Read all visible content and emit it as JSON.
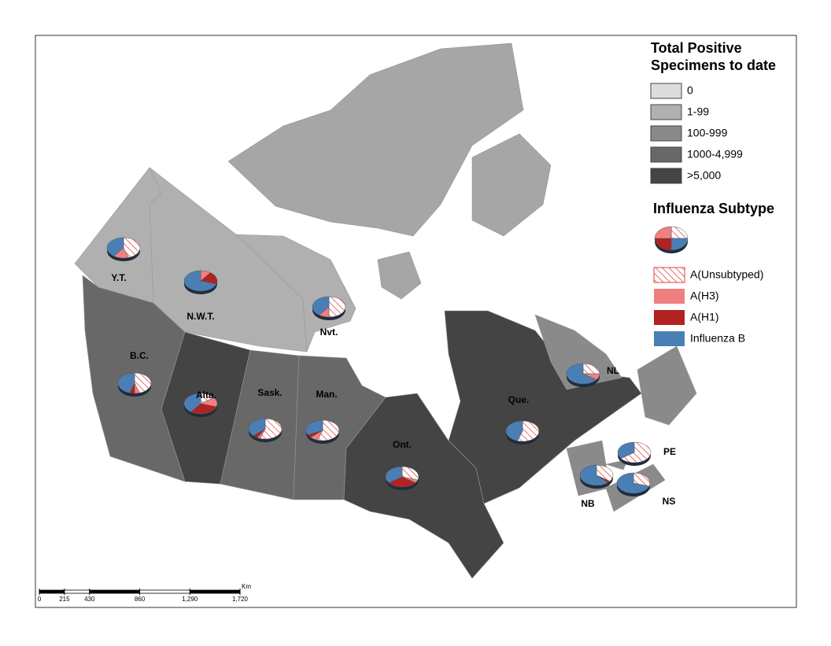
{
  "legend": {
    "title": [
      "Total Positive",
      "Specimens to date"
    ],
    "classes": [
      {
        "label": "0",
        "color": "#dcdcdc"
      },
      {
        "label": "1-99",
        "color": "#b0b0b0"
      },
      {
        "label": "100-999",
        "color": "#8a8a8a"
      },
      {
        "label": "1000-4,999",
        "color": "#686868"
      },
      {
        "label": ">5,000",
        "color": "#444444"
      }
    ]
  },
  "subtype_legend": {
    "title": "Influenza Subtype",
    "items": [
      {
        "label": "A(Unsubtyped)",
        "color": "#e0453a",
        "hatched": true
      },
      {
        "label": "A(H3)",
        "color": "#f08080"
      },
      {
        "label": "A(H1)",
        "color": "#b22222"
      },
      {
        "label": "Influenza B",
        "color": "#4a7fb5"
      }
    ]
  },
  "provinces": [
    {
      "label": "Y.T.",
      "class": 1,
      "shares": [
        45,
        15,
        0,
        40
      ]
    },
    {
      "label": "N.W.T.",
      "class": 1,
      "shares": [
        0,
        10,
        20,
        70
      ]
    },
    {
      "label": "Nvt.",
      "class": 1,
      "shares": [
        50,
        10,
        0,
        40
      ]
    },
    {
      "label": "B.C.",
      "class": 3,
      "shares": [
        45,
        5,
        5,
        45
      ]
    },
    {
      "label": "Alta.",
      "class": 4,
      "shares": [
        15,
        15,
        30,
        40
      ]
    },
    {
      "label": "Sask.",
      "class": 3,
      "shares": [
        55,
        3,
        5,
        37
      ]
    },
    {
      "label": "Man.",
      "class": 3,
      "shares": [
        55,
        8,
        5,
        32
      ]
    },
    {
      "label": "Ont.",
      "class": 4,
      "shares": [
        30,
        5,
        30,
        35
      ]
    },
    {
      "label": "Que.",
      "class": 4,
      "shares": [
        55,
        0,
        0,
        45
      ]
    },
    {
      "label": "NL",
      "class": 2,
      "shares": [
        25,
        10,
        0,
        65
      ]
    },
    {
      "label": "PE",
      "class": 2,
      "shares": [
        65,
        0,
        0,
        35
      ]
    },
    {
      "label": "NB",
      "class": 2,
      "shares": [
        35,
        0,
        3,
        62
      ]
    },
    {
      "label": "NS",
      "class": 2,
      "shares": [
        30,
        0,
        0,
        70
      ]
    }
  ],
  "scale_bar": {
    "unit": "Km",
    "ticks": [
      0,
      215,
      430,
      860,
      {
        "value": 1290,
        "label": "1,290"
      },
      {
        "value": 1720,
        "label": "1,720"
      }
    ]
  }
}
